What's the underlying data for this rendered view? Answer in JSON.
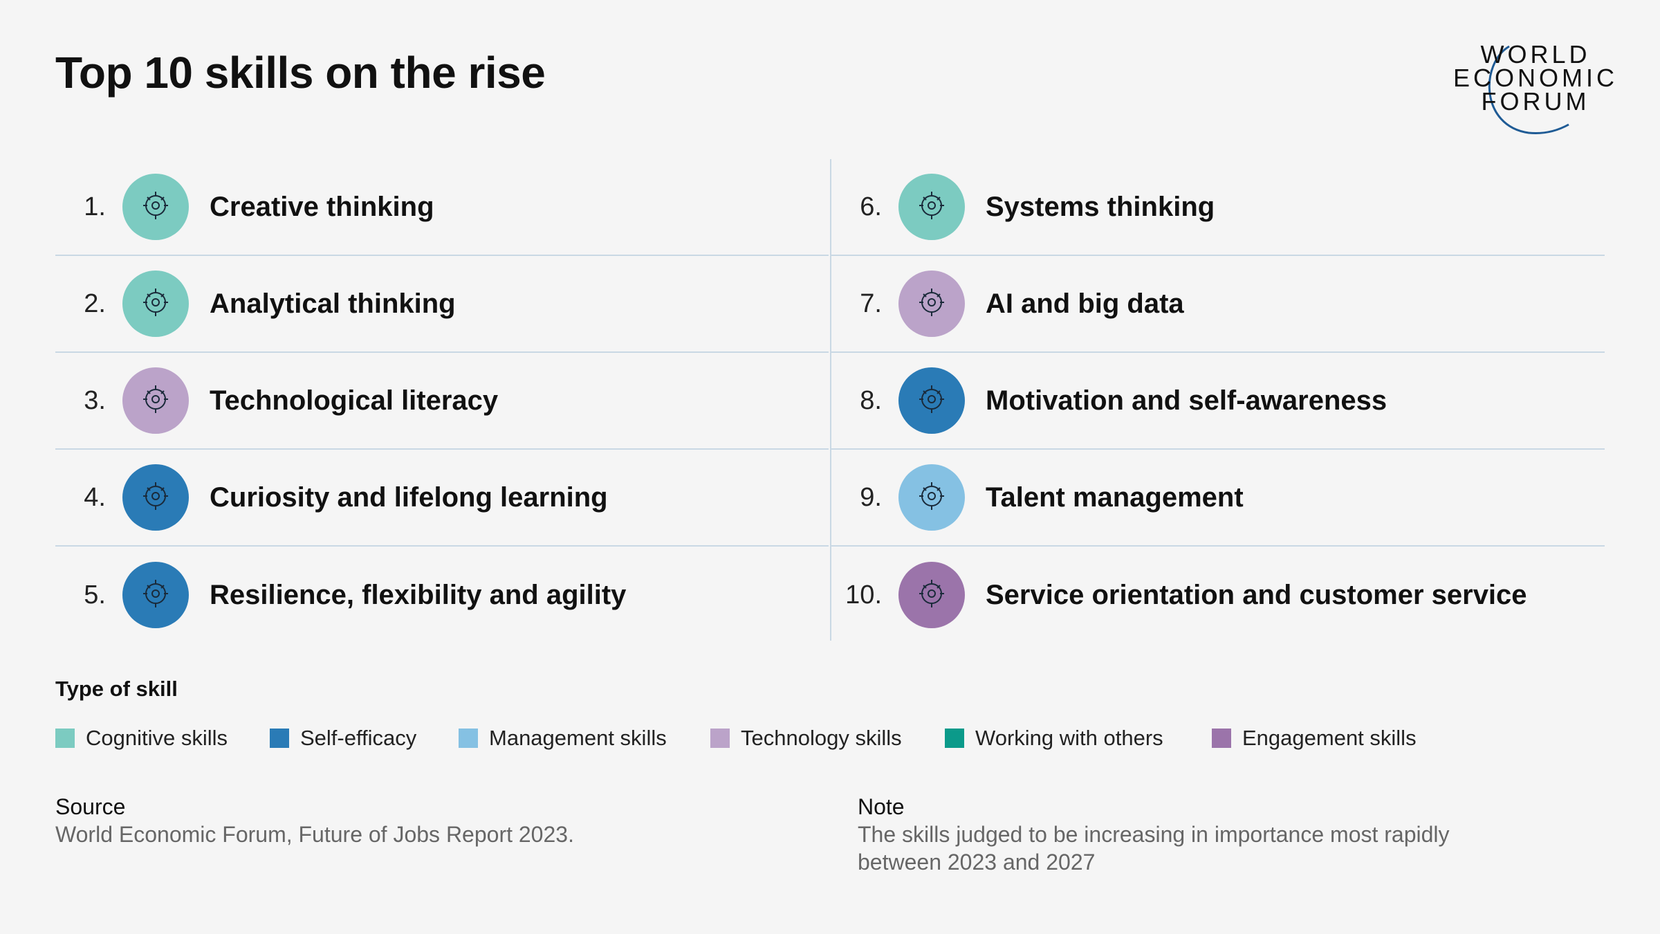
{
  "title": "Top 10 skills on the rise",
  "logo": {
    "text": [
      "WORLD",
      "ECONOMIC",
      "FORUM"
    ],
    "color": "#1f5b95"
  },
  "skills": [
    {
      "rank": "1.",
      "label": "Creative thinking",
      "type": "cognitive",
      "icon": "head-gear-icon"
    },
    {
      "rank": "2.",
      "label": "Analytical thinking",
      "type": "cognitive",
      "icon": "head-chart-icon"
    },
    {
      "rank": "3.",
      "label": "Technological literacy",
      "type": "technology",
      "icon": "shirt-chip-icon"
    },
    {
      "rank": "4.",
      "label": "Curiosity and lifelong learning",
      "type": "self_efficacy",
      "icon": "magnifier-question-icon"
    },
    {
      "rank": "5.",
      "label": "Resilience, flexibility and agility",
      "type": "self_efficacy",
      "icon": "head-lightning-icon"
    },
    {
      "rank": "6.",
      "label": "Systems thinking",
      "type": "cognitive",
      "icon": "network-database-icon"
    },
    {
      "rank": "7.",
      "label": "AI and big data",
      "type": "technology",
      "icon": "chip-icon"
    },
    {
      "rank": "8.",
      "label": "Motivation and self-awareness",
      "type": "self_efficacy",
      "icon": "magnifier-person-icon"
    },
    {
      "rank": "9.",
      "label": "Talent management",
      "type": "management",
      "icon": "gear-people-icon"
    },
    {
      "rank": "10.",
      "label": "Service orientation and customer service",
      "type": "engagement",
      "icon": "headset-chat-icon"
    }
  ],
  "legend": {
    "title": "Type of skill",
    "items": [
      {
        "key": "cognitive",
        "label": "Cognitive skills",
        "color": "#7ccbc1"
      },
      {
        "key": "self_efficacy",
        "label": "Self-efficacy",
        "color": "#2a7bb6"
      },
      {
        "key": "management",
        "label": "Management skills",
        "color": "#85c1e3"
      },
      {
        "key": "technology",
        "label": "Technology skills",
        "color": "#bba3c9"
      },
      {
        "key": "working",
        "label": "Working with others",
        "color": "#0b9a8a"
      },
      {
        "key": "engagement",
        "label": "Engagement skills",
        "color": "#9b74aa"
      }
    ]
  },
  "source": {
    "heading": "Source",
    "text": "World Economic Forum, Future of Jobs Report 2023."
  },
  "note": {
    "heading": "Note",
    "lines": [
      "The skills judged to be increasing in importance most rapidly",
      "between 2023 and 2027"
    ]
  }
}
